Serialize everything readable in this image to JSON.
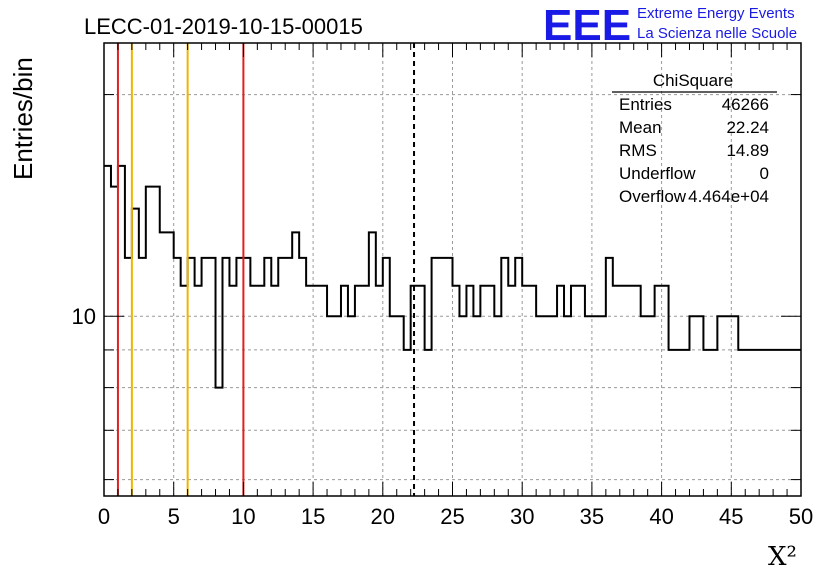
{
  "header": {
    "title": "LECC-01-2019-10-15-00015",
    "logo_text": "EEE",
    "org_line1": "Extreme Energy Events",
    "org_line2": "La Scienza nelle Scuole",
    "logo_color": "#1a1ae6"
  },
  "stats": {
    "title": "ChiSquare",
    "rows": [
      {
        "label": "Entries",
        "value": "46266"
      },
      {
        "label": "Mean",
        "value": "22.24"
      },
      {
        "label": "RMS",
        "value": "14.89"
      },
      {
        "label": "Underflow",
        "value": "0"
      },
      {
        "label": "Overflow",
        "value": "4.464e+04"
      }
    ]
  },
  "chart_data": {
    "type": "histogram",
    "xlabel": "X²",
    "ylabel": "Entries/bin",
    "xlim": [
      0,
      50
    ],
    "ylim": [
      5.7,
      23.5
    ],
    "yscale": "log",
    "grid": true,
    "bin_width": 0.5,
    "x_ticks": [
      "0",
      "5",
      "10",
      "15",
      "20",
      "25",
      "30",
      "35",
      "40",
      "45",
      "50"
    ],
    "y_ticks": [
      "10"
    ],
    "values": [
      16,
      15,
      16,
      12,
      14,
      12,
      15,
      15,
      13,
      13,
      12,
      11,
      12,
      11,
      12,
      12,
      8,
      12,
      11,
      12,
      12,
      11,
      11,
      12,
      11,
      12,
      12,
      13,
      12,
      11,
      11,
      11,
      10,
      10,
      11,
      10,
      11,
      11,
      13,
      11,
      12,
      10,
      10,
      9,
      11,
      11,
      9,
      12,
      12,
      12,
      11,
      10,
      11,
      10,
      11,
      11,
      10,
      12,
      11,
      12,
      11,
      11,
      10,
      10,
      10,
      11,
      10,
      11,
      11,
      10,
      10,
      10,
      12,
      11,
      11,
      11,
      11,
      10,
      10,
      11,
      11,
      9,
      9,
      9,
      10,
      10,
      9,
      9,
      10,
      10,
      10,
      9,
      9,
      9,
      9,
      9,
      9,
      9,
      9,
      9
    ],
    "vertical_lines": [
      {
        "x": 1,
        "color": "#e02020",
        "style": "solid"
      },
      {
        "x": 2,
        "color": "#f0b400",
        "style": "solid"
      },
      {
        "x": 6,
        "color": "#f0b400",
        "style": "solid"
      },
      {
        "x": 10,
        "color": "#e02020",
        "style": "solid"
      },
      {
        "x": 22.24,
        "color": "#000000",
        "style": "dashed"
      }
    ]
  }
}
